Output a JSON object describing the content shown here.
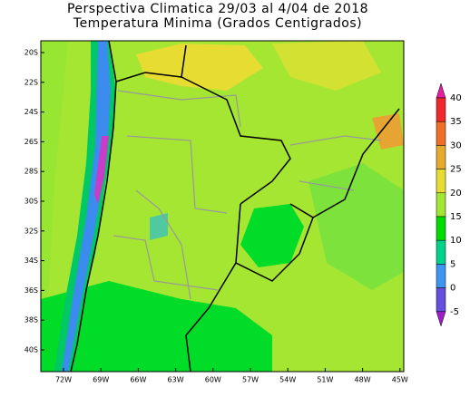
{
  "title": "Perspectiva Climatica 29/03 al 4/04 de 2018",
  "subtitle": "Temperatura Minima (Grados Centigrados)",
  "latitude_labels": [
    "20S",
    "22S",
    "24S",
    "26S",
    "28S",
    "30S",
    "32S",
    "34S",
    "36S",
    "38S",
    "40S"
  ],
  "longitude_labels": [
    "72W",
    "69W",
    "66W",
    "63W",
    "60W",
    "57W",
    "54W",
    "51W",
    "48W",
    "45W"
  ],
  "colorbar": {
    "labels": [
      40,
      35,
      30,
      25,
      20,
      15,
      10,
      5,
      0,
      -5
    ]
  }
}
